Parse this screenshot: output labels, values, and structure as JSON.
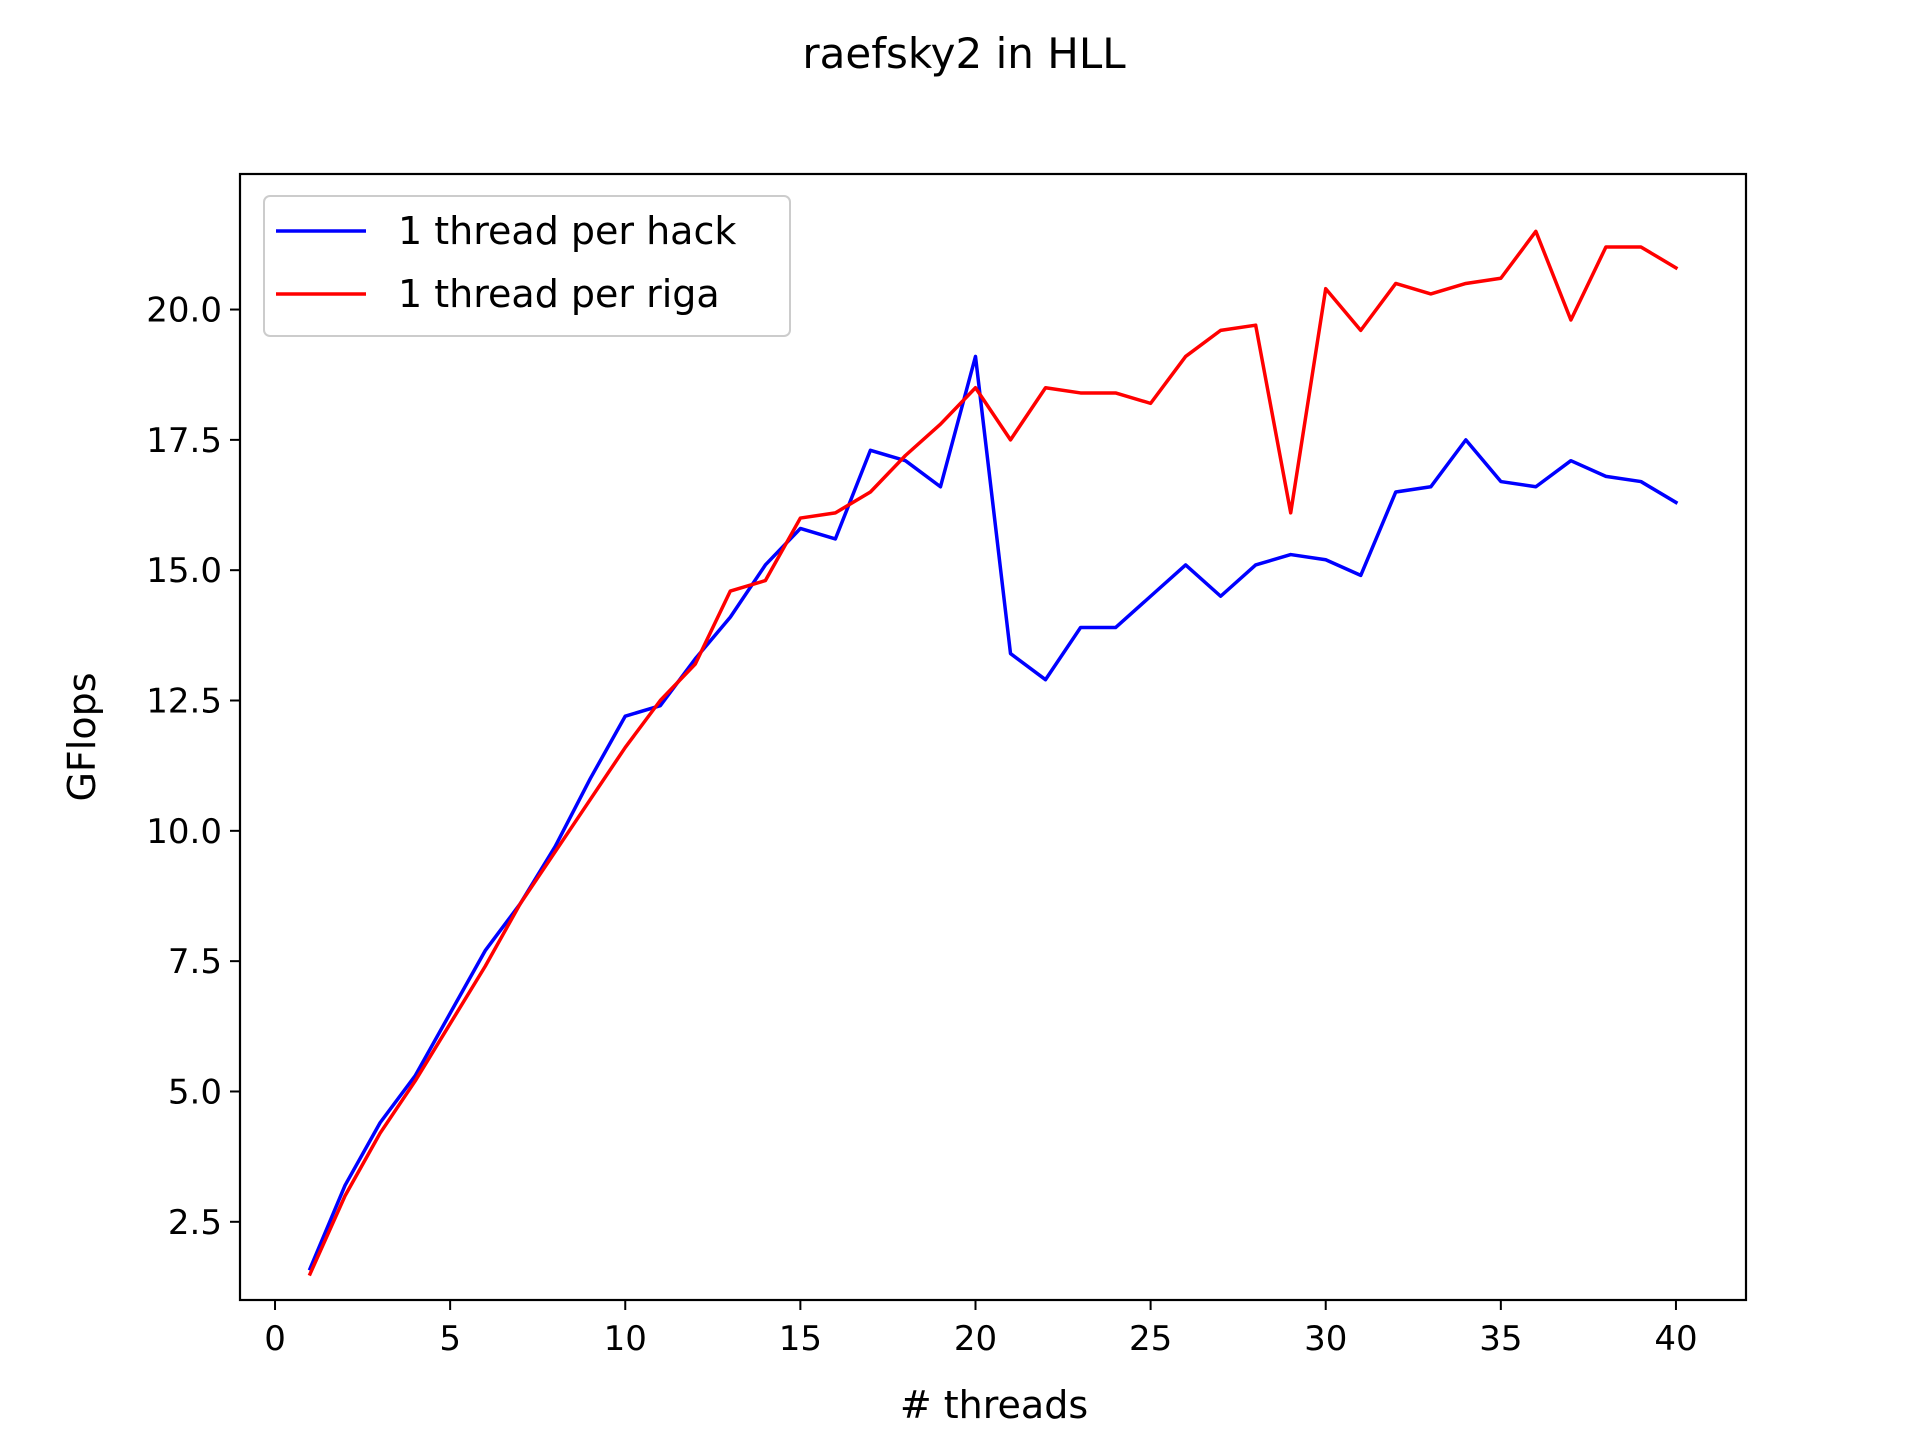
{
  "chart_data": {
    "type": "line",
    "title": "raefsky2 in HLL",
    "xlabel": "# threads",
    "ylabel": "GFlops",
    "xlim": [
      -1,
      42
    ],
    "ylim": [
      1.0,
      22.6
    ],
    "x_ticks": [
      0,
      5,
      10,
      15,
      20,
      25,
      30,
      35,
      40
    ],
    "x_tick_labels": [
      "0",
      "5",
      "10",
      "15",
      "20",
      "25",
      "30",
      "35",
      "40"
    ],
    "y_ticks": [
      2.5,
      5.0,
      7.5,
      10.0,
      12.5,
      15.0,
      17.5,
      20.0
    ],
    "y_tick_labels": [
      "2.5",
      "5.0",
      "7.5",
      "10.0",
      "12.5",
      "15.0",
      "17.5",
      "20.0"
    ],
    "grid": false,
    "legend_position": "top-left",
    "x": [
      1,
      2,
      3,
      4,
      5,
      6,
      7,
      8,
      9,
      10,
      11,
      12,
      13,
      14,
      15,
      16,
      17,
      18,
      19,
      20,
      21,
      22,
      23,
      24,
      25,
      26,
      27,
      28,
      29,
      30,
      31,
      32,
      33,
      34,
      35,
      36,
      37,
      38,
      39,
      40
    ],
    "series": [
      {
        "name": "1 thread per hack",
        "color": "#0000ff",
        "values": [
          1.6,
          3.2,
          4.4,
          5.3,
          6.5,
          7.7,
          8.6,
          9.7,
          11.0,
          12.2,
          12.4,
          13.3,
          14.1,
          15.1,
          15.8,
          15.6,
          17.3,
          17.1,
          16.6,
          19.1,
          13.4,
          12.9,
          13.9,
          13.9,
          14.5,
          15.1,
          14.5,
          15.1,
          15.3,
          15.2,
          14.9,
          16.5,
          16.6,
          17.5,
          16.7,
          16.6,
          17.1,
          16.8,
          16.7,
          16.3
        ]
      },
      {
        "name": "1 thread per riga",
        "color": "#ff0000",
        "values": [
          1.5,
          3.0,
          4.2,
          5.2,
          6.3,
          7.4,
          8.6,
          9.6,
          10.6,
          11.6,
          12.5,
          13.2,
          14.6,
          14.8,
          16.0,
          16.1,
          16.5,
          17.2,
          17.8,
          18.5,
          17.5,
          18.5,
          18.4,
          18.4,
          18.2,
          19.1,
          19.6,
          19.7,
          16.1,
          20.4,
          19.6,
          20.5,
          20.3,
          20.5,
          20.6,
          21.5,
          19.8,
          21.2,
          21.2,
          20.8
        ]
      }
    ]
  }
}
